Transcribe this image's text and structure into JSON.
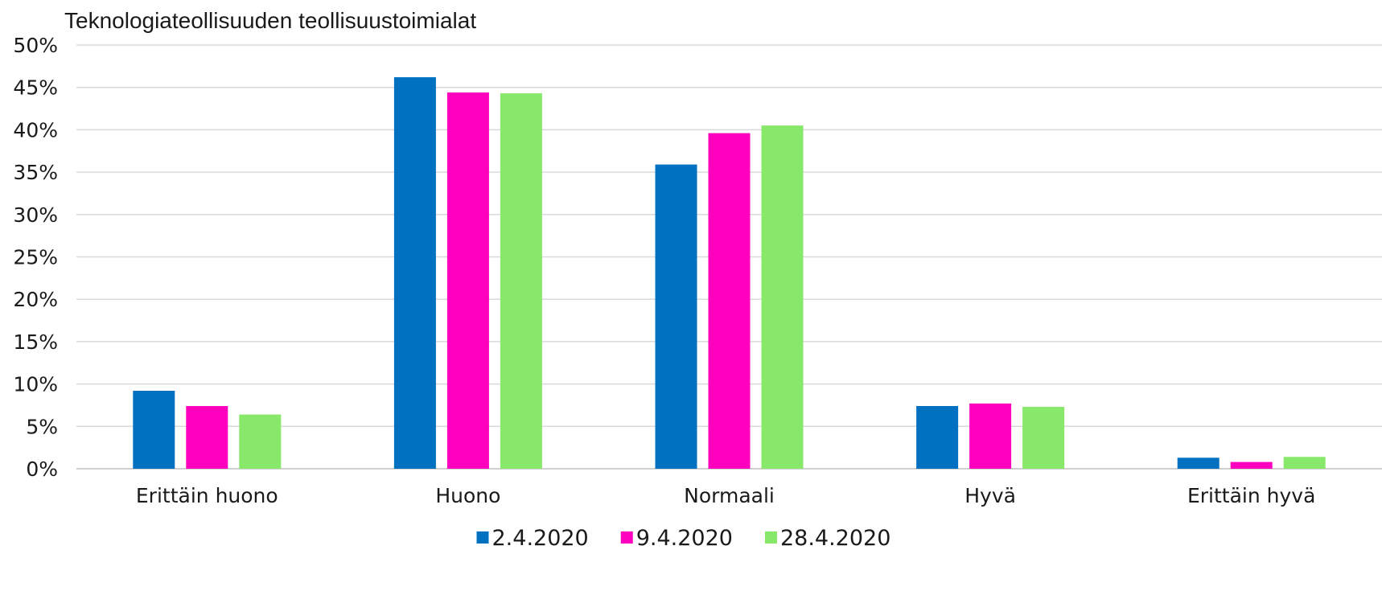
{
  "chart_data": {
    "type": "bar",
    "title": "Teknologiateollisuuden teollisuustoimialat",
    "categories": [
      "Erittäin huono",
      "Huono",
      "Normaali",
      "Hyvä",
      "Erittäin hyvä"
    ],
    "series": [
      {
        "name": "2.4.2020",
        "color": "#0070C0",
        "values": [
          9.2,
          46.2,
          35.9,
          7.4,
          1.3
        ]
      },
      {
        "name": "9.4.2020",
        "color": "#FF00BF",
        "values": [
          7.4,
          44.4,
          39.6,
          7.7,
          0.8
        ]
      },
      {
        "name": "28.4.2020",
        "color": "#87E86A",
        "values": [
          6.4,
          44.3,
          40.5,
          7.3,
          1.4
        ]
      }
    ],
    "yticks": [
      "0%",
      "5%",
      "10%",
      "15%",
      "20%",
      "25%",
      "30%",
      "35%",
      "40%",
      "45%",
      "50%"
    ],
    "ylim": [
      0,
      50
    ],
    "grid": true,
    "legend_position": "bottom"
  }
}
